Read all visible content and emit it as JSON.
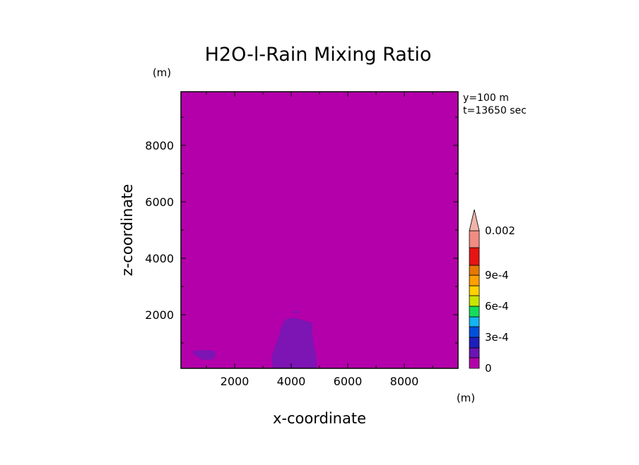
{
  "chart_data": {
    "type": "heatmap",
    "title": "H2O-l-Rain Mixing Ratio",
    "xlabel": "x-coordinate",
    "ylabel": "z-coordinate",
    "x_unit": "(m)",
    "y_unit": "(m)",
    "xlim": [
      100,
      9900
    ],
    "ylim": [
      100,
      9900
    ],
    "x_ticks": [
      2000,
      4000,
      6000,
      8000
    ],
    "y_ticks": [
      2000,
      4000,
      6000,
      8000
    ],
    "slice_label": "y=100 m",
    "time_label": "t=13650 sec",
    "background_level_color": "#b400aa",
    "colorbar": {
      "levels": [
        0,
        0.0001,
        0.0002,
        0.0003,
        0.0004,
        0.0005,
        0.0006,
        0.0007,
        0.0008,
        0.0009,
        0.001,
        0.0015,
        0.002
      ],
      "colors": [
        "#b400aa",
        "#6a14b4",
        "#1e1ebe",
        "#0050dc",
        "#14b4f0",
        "#14dc5a",
        "#c8e600",
        "#ffd200",
        "#ffa000",
        "#e67800",
        "#e61414",
        "#f08c82"
      ],
      "extend_color": "#f0b4aa",
      "tick_values": [
        0,
        0.0003,
        0.0006,
        0.0009,
        0.002
      ],
      "tick_labels": [
        "0",
        "3e-4",
        "6e-4",
        "9e-4",
        "0.002"
      ]
    },
    "regions": [
      {
        "level_color": "#7d14b4",
        "polygon": [
          [
            3350,
            120
          ],
          [
            3300,
            500
          ],
          [
            3400,
            800
          ],
          [
            3550,
            1200
          ],
          [
            3650,
            1600
          ],
          [
            3800,
            1850
          ],
          [
            4100,
            1900
          ],
          [
            4450,
            1800
          ],
          [
            4750,
            1700
          ],
          [
            4750,
            1300
          ],
          [
            4800,
            900
          ],
          [
            4900,
            500
          ],
          [
            4900,
            120
          ]
        ]
      },
      {
        "level_color": "#7d14b4",
        "polygon": [
          [
            500,
            700
          ],
          [
            800,
            750
          ],
          [
            1250,
            730
          ],
          [
            1350,
            600
          ],
          [
            1250,
            420
          ],
          [
            900,
            400
          ],
          [
            600,
            550
          ]
        ]
      },
      {
        "level_color": "#7d14b4",
        "polygon": [
          [
            4050,
            2100
          ],
          [
            4250,
            2150
          ],
          [
            4300,
            2080
          ],
          [
            4100,
            2050
          ]
        ]
      }
    ]
  }
}
